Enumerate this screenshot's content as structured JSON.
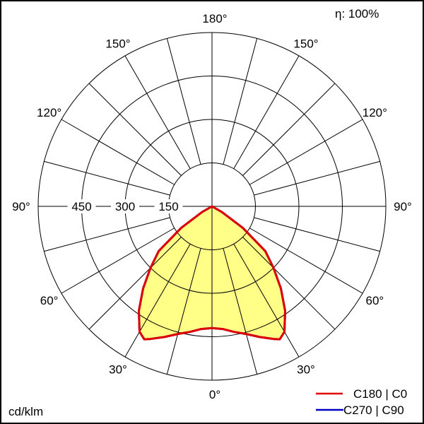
{
  "chart_data": {
    "type": "polar",
    "unit_label": "cd/klm",
    "efficiency_label": "η: 100%",
    "radial_ticks": [
      150,
      300,
      450
    ],
    "radial_max": 600,
    "grid_step_deg": 15,
    "angle_labels": [
      "0°",
      "30°",
      "60°",
      "90°",
      "120°",
      "150°",
      "180°"
    ],
    "angle_label_values": [
      0,
      30,
      60,
      90,
      120,
      150,
      180
    ],
    "legend": [
      {
        "name": "C180 | C0",
        "color": "#e00000"
      },
      {
        "name": "C270 | C90",
        "color": "#0000c0"
      }
    ],
    "fill_color": "#ffff88",
    "series": [
      {
        "name": "C180 | C0",
        "color": "#e00000",
        "angles": [
          0,
          5,
          10,
          15,
          20,
          25,
          27,
          30,
          35,
          40,
          45,
          50,
          55,
          60,
          65,
          90,
          120,
          150,
          180
        ],
        "values": [
          420,
          425,
          440,
          456,
          480,
          505,
          515,
          500,
          440,
          370,
          300,
          240,
          130,
          40,
          0,
          0,
          0,
          0,
          0
        ]
      },
      {
        "name": "C270 | C90",
        "color": "#0000c0",
        "angles": [
          0,
          5,
          10,
          15,
          20,
          25,
          27,
          30,
          35,
          40,
          45,
          50,
          55,
          60,
          65,
          90,
          120,
          150,
          180
        ],
        "values": [
          420,
          425,
          440,
          456,
          480,
          505,
          515,
          500,
          440,
          370,
          300,
          240,
          130,
          40,
          0,
          0,
          0,
          0,
          0
        ]
      }
    ]
  }
}
